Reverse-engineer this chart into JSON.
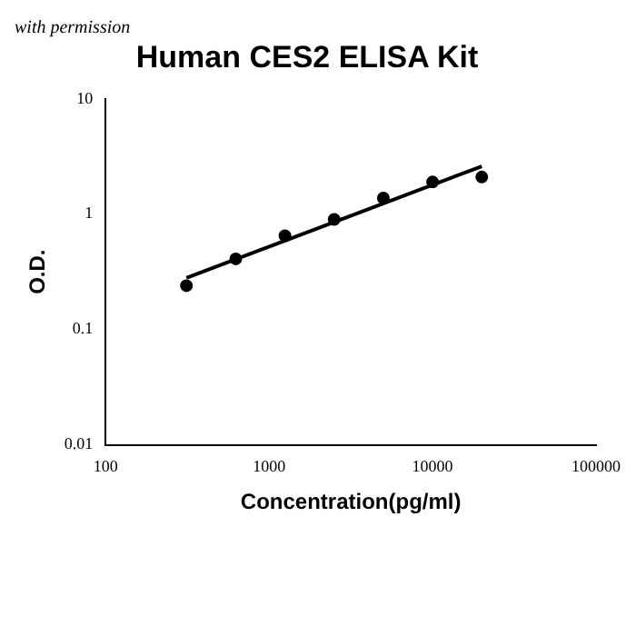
{
  "chart_data": {
    "type": "scatter",
    "title": "Human CES2 ELISA Kit",
    "xlabel": "Concentration(pg/ml)",
    "ylabel": "O.D.",
    "annotations": [
      "with permission"
    ],
    "log": "xy",
    "grid": false,
    "legend": false,
    "marker": "circle",
    "xlim": [
      100,
      100000
    ],
    "xticks": [
      100,
      1000,
      10000,
      100000
    ],
    "ylim": [
      0.01,
      10
    ],
    "yticks": [
      0.01,
      0.1,
      1,
      10
    ],
    "x": [
      312,
      625,
      1250,
      2500,
      5000,
      10000,
      20000
    ],
    "series": [
      {
        "color": "#000000",
        "values": [
          0.24,
          0.41,
          0.65,
          0.9,
          1.38,
          1.9,
          2.1
        ]
      },
      {
        "type": "line",
        "marker": "none",
        "color": "#000000",
        "x": [
          312,
          20000
        ],
        "values": [
          0.28,
          2.6
        ]
      }
    ]
  }
}
